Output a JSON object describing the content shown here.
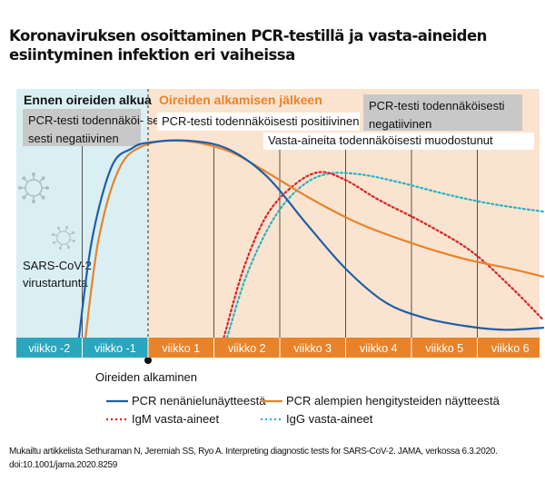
{
  "title": "Koronaviruksen osoittaminen PCR-testillä ja vasta-aineiden esiintyminen infektion eri vaiheissa",
  "source": "Mukailtu artikkelista Sethuraman N, Jeremiah SS, Ryo A. Interpreting diagnostic tests for SARS-CoV-2. JAMA, verkossa 6.3.2020. doi:10.1001/jama.2020.8259",
  "colors": {
    "before_bg": "#d9eff3",
    "after_bg": "#fbe4cf",
    "axis_before": "#2aa6bf",
    "axis_after": "#e8832a",
    "pcr_nasal": "#1f5fa8",
    "pcr_lower": "#e8832a",
    "igm": "#d8232a",
    "igg": "#28b3c4",
    "gray_box": "#c8c8c8"
  },
  "icons": [
    "virus-icon"
  ],
  "chart_data": {
    "type": "line",
    "x_unit": "weeks relative to symptom onset",
    "xlim": [
      -2,
      6
    ],
    "ylim": [
      0,
      1
    ],
    "y_axis_shown": false,
    "grid": "vertical",
    "week_labels": [
      "viikko -2",
      "viikko -1",
      "viikko 1",
      "viikko 2",
      "viikko 3",
      "viikko 4",
      "viikko 5",
      "viikko 6"
    ],
    "phases": [
      {
        "label": "Ennen oireiden alkua",
        "from": -2,
        "to": 0
      },
      {
        "label": "Oireiden alkamisen jälkeen",
        "from": 0,
        "to": 6
      }
    ],
    "onset_marker": {
      "x": 0,
      "label": "Oireiden alkaminen"
    },
    "infection_label": "SARS-CoV-2 virustartunta",
    "annotations": [
      {
        "id": "pre_negative",
        "text": "PCR-testi todennäköi- sesti negatiivinen",
        "style": "gray"
      },
      {
        "id": "pcr_positive",
        "text": "PCR-testi todennäköisesti positiivinen",
        "style": "white"
      },
      {
        "id": "antibodies_forming",
        "text": "Vasta-aineita todennäköisesti muodostunut",
        "style": "white"
      },
      {
        "id": "post_negative",
        "text": "PCR-testi todennäköisesti negatiivinen",
        "style": "gray"
      }
    ],
    "series": [
      {
        "name": "PCR nenänielunäytteestä",
        "color": "#1f5fa8",
        "dash": "solid",
        "points": [
          [
            -1.05,
            0.0
          ],
          [
            -0.85,
            0.5
          ],
          [
            -0.55,
            0.87
          ],
          [
            -0.25,
            0.96
          ],
          [
            0.0,
            0.99
          ],
          [
            0.6,
            1.0
          ],
          [
            1.2,
            0.96
          ],
          [
            1.8,
            0.82
          ],
          [
            2.4,
            0.58
          ],
          [
            3.0,
            0.35
          ],
          [
            3.6,
            0.18
          ],
          [
            4.2,
            0.1
          ],
          [
            4.8,
            0.06
          ],
          [
            5.4,
            0.04
          ],
          [
            6.0,
            0.05
          ]
        ]
      },
      {
        "name": "PCR alempien hengitysteiden näytteestä",
        "color": "#e8832a",
        "dash": "solid",
        "points": [
          [
            -0.95,
            0.0
          ],
          [
            -0.75,
            0.5
          ],
          [
            -0.45,
            0.85
          ],
          [
            -0.1,
            0.97
          ],
          [
            0.5,
            1.0
          ],
          [
            1.2,
            0.95
          ],
          [
            1.8,
            0.84
          ],
          [
            2.5,
            0.7
          ],
          [
            3.2,
            0.58
          ],
          [
            4.0,
            0.48
          ],
          [
            4.8,
            0.4
          ],
          [
            5.5,
            0.35
          ],
          [
            6.0,
            0.31
          ]
        ]
      },
      {
        "name": "IgM vasta-aineet",
        "color": "#d8232a",
        "dash": "dotted",
        "points": [
          [
            1.15,
            0.0
          ],
          [
            1.45,
            0.35
          ],
          [
            1.8,
            0.62
          ],
          [
            2.2,
            0.77
          ],
          [
            2.6,
            0.84
          ],
          [
            3.0,
            0.8
          ],
          [
            3.5,
            0.7
          ],
          [
            4.2,
            0.58
          ],
          [
            4.9,
            0.44
          ],
          [
            5.5,
            0.26
          ],
          [
            6.0,
            0.09
          ]
        ]
      },
      {
        "name": "IgG vasta-aineet",
        "color": "#28b3c4",
        "dash": "dotted",
        "points": [
          [
            1.2,
            0.0
          ],
          [
            1.5,
            0.32
          ],
          [
            1.9,
            0.6
          ],
          [
            2.3,
            0.76
          ],
          [
            2.7,
            0.83
          ],
          [
            3.2,
            0.83
          ],
          [
            3.8,
            0.79
          ],
          [
            4.5,
            0.73
          ],
          [
            5.2,
            0.68
          ],
          [
            6.0,
            0.64
          ]
        ]
      }
    ]
  }
}
